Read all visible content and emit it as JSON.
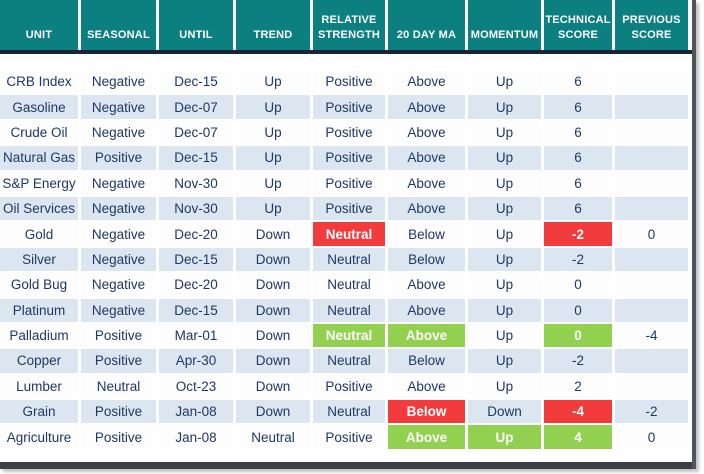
{
  "chart_data": {
    "type": "table",
    "title": "",
    "columns": [
      "UNIT",
      "SEASONAL",
      "UNTIL",
      "TREND",
      "RELATIVE STRENGTH",
      "20 DAY MA",
      "MOMENTUM",
      "TECHNICAL SCORE",
      "PREVIOUS SCORE"
    ],
    "rows": [
      {
        "cells": [
          {
            "text": "CRB Index"
          },
          {
            "text": "Negative"
          },
          {
            "text": "Dec-15"
          },
          {
            "text": "Up"
          },
          {
            "text": "Positive"
          },
          {
            "text": "Above"
          },
          {
            "text": "Up"
          },
          {
            "text": "6"
          },
          {
            "text": ""
          }
        ]
      },
      {
        "cells": [
          {
            "text": "Gasoline"
          },
          {
            "text": "Negative"
          },
          {
            "text": "Dec-07"
          },
          {
            "text": "Up"
          },
          {
            "text": "Positive"
          },
          {
            "text": "Above"
          },
          {
            "text": "Up"
          },
          {
            "text": "6"
          },
          {
            "text": ""
          }
        ]
      },
      {
        "cells": [
          {
            "text": "Crude Oil"
          },
          {
            "text": "Negative"
          },
          {
            "text": "Dec-07"
          },
          {
            "text": "Up"
          },
          {
            "text": "Positive"
          },
          {
            "text": "Above"
          },
          {
            "text": "Up"
          },
          {
            "text": "6"
          },
          {
            "text": ""
          }
        ]
      },
      {
        "cells": [
          {
            "text": "Natural Gas"
          },
          {
            "text": "Positive"
          },
          {
            "text": "Dec-15"
          },
          {
            "text": "Up"
          },
          {
            "text": "Positive"
          },
          {
            "text": "Above"
          },
          {
            "text": "Up"
          },
          {
            "text": "6"
          },
          {
            "text": ""
          }
        ]
      },
      {
        "cells": [
          {
            "text": "S&P Energy"
          },
          {
            "text": "Negative"
          },
          {
            "text": "Nov-30"
          },
          {
            "text": "Up"
          },
          {
            "text": "Positive"
          },
          {
            "text": "Above"
          },
          {
            "text": "Up"
          },
          {
            "text": "6"
          },
          {
            "text": ""
          }
        ]
      },
      {
        "cells": [
          {
            "text": "Oil Services"
          },
          {
            "text": "Negative"
          },
          {
            "text": "Nov-30"
          },
          {
            "text": "Up"
          },
          {
            "text": "Positive"
          },
          {
            "text": "Above"
          },
          {
            "text": "Up"
          },
          {
            "text": "6"
          },
          {
            "text": ""
          }
        ]
      },
      {
        "cells": [
          {
            "text": "Gold"
          },
          {
            "text": "Negative"
          },
          {
            "text": "Dec-20"
          },
          {
            "text": "Down"
          },
          {
            "text": "Neutral",
            "highlight": "red"
          },
          {
            "text": "Below"
          },
          {
            "text": "Up"
          },
          {
            "text": "-2",
            "highlight": "red"
          },
          {
            "text": "0"
          }
        ]
      },
      {
        "cells": [
          {
            "text": "Silver"
          },
          {
            "text": "Negative"
          },
          {
            "text": "Dec-15"
          },
          {
            "text": "Down"
          },
          {
            "text": "Neutral"
          },
          {
            "text": "Below"
          },
          {
            "text": "Up"
          },
          {
            "text": "-2"
          },
          {
            "text": ""
          }
        ]
      },
      {
        "cells": [
          {
            "text": "Gold Bug"
          },
          {
            "text": "Negative"
          },
          {
            "text": "Dec-20"
          },
          {
            "text": "Down"
          },
          {
            "text": "Neutral"
          },
          {
            "text": "Above"
          },
          {
            "text": "Up"
          },
          {
            "text": "0"
          },
          {
            "text": ""
          }
        ]
      },
      {
        "cells": [
          {
            "text": "Platinum"
          },
          {
            "text": "Negative"
          },
          {
            "text": "Dec-15"
          },
          {
            "text": "Down"
          },
          {
            "text": "Neutral"
          },
          {
            "text": "Above"
          },
          {
            "text": "Up"
          },
          {
            "text": "0"
          },
          {
            "text": ""
          }
        ]
      },
      {
        "cells": [
          {
            "text": "Palladium"
          },
          {
            "text": "Positive"
          },
          {
            "text": "Mar-01"
          },
          {
            "text": "Down"
          },
          {
            "text": "Neutral",
            "highlight": "green"
          },
          {
            "text": "Above",
            "highlight": "green"
          },
          {
            "text": "Up"
          },
          {
            "text": "0",
            "highlight": "green"
          },
          {
            "text": "-4"
          }
        ]
      },
      {
        "cells": [
          {
            "text": "Copper"
          },
          {
            "text": "Positive"
          },
          {
            "text": "Apr-30"
          },
          {
            "text": "Down"
          },
          {
            "text": "Neutral"
          },
          {
            "text": "Below"
          },
          {
            "text": "Up"
          },
          {
            "text": "-2"
          },
          {
            "text": ""
          }
        ]
      },
      {
        "cells": [
          {
            "text": "Lumber"
          },
          {
            "text": "Neutral"
          },
          {
            "text": "Oct-23"
          },
          {
            "text": "Down"
          },
          {
            "text": "Positive"
          },
          {
            "text": "Above"
          },
          {
            "text": "Up"
          },
          {
            "text": "2"
          },
          {
            "text": ""
          }
        ]
      },
      {
        "cells": [
          {
            "text": "Grain"
          },
          {
            "text": "Positive"
          },
          {
            "text": "Jan-08"
          },
          {
            "text": "Down"
          },
          {
            "text": "Neutral"
          },
          {
            "text": "Below",
            "highlight": "red"
          },
          {
            "text": "Down"
          },
          {
            "text": "-4",
            "highlight": "red"
          },
          {
            "text": "-2"
          }
        ]
      },
      {
        "cells": [
          {
            "text": "Agriculture"
          },
          {
            "text": "Positive"
          },
          {
            "text": "Jan-08"
          },
          {
            "text": "Neutral"
          },
          {
            "text": "Positive"
          },
          {
            "text": "Above",
            "highlight": "green"
          },
          {
            "text": "Up",
            "highlight": "green"
          },
          {
            "text": "4",
            "highlight": "green"
          },
          {
            "text": "0"
          }
        ]
      }
    ]
  },
  "colors": {
    "header_bg": "#0c7f80",
    "accent_line": "#1b2335",
    "row_alt": "#dce6f1",
    "text_color": "#1f3864",
    "red": "#f23b3d",
    "green": "#92d050",
    "frame_border": "#51545c",
    "bottom_bar": "#3c3f46"
  }
}
